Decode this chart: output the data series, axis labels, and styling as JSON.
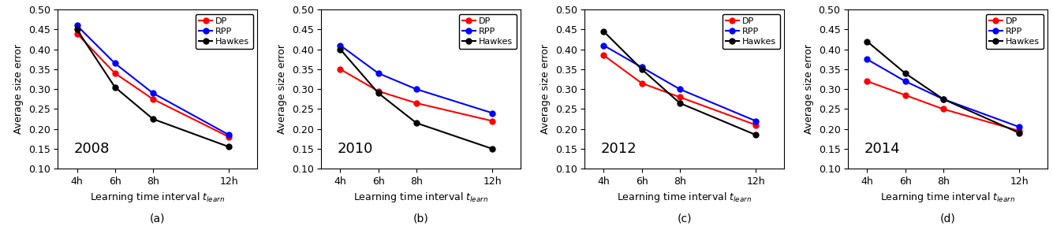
{
  "x_ticks": [
    4,
    6,
    8,
    12
  ],
  "x_labels": [
    "4h",
    "6h",
    "8h",
    "12h"
  ],
  "xlabel": "Learning time interval $t_{learn}$",
  "ylabel": "Average size error",
  "ylim": [
    0.1,
    0.5
  ],
  "yticks": [
    0.1,
    0.15,
    0.2,
    0.25,
    0.3,
    0.35,
    0.4,
    0.45,
    0.5
  ],
  "panels": [
    {
      "year": "2008",
      "label": "(a)",
      "DP": [
        0.44,
        0.34,
        0.275,
        0.18
      ],
      "RPP": [
        0.46,
        0.365,
        0.29,
        0.185
      ],
      "Hawkes": [
        0.45,
        0.305,
        0.225,
        0.155
      ]
    },
    {
      "year": "2010",
      "label": "(b)",
      "DP": [
        0.35,
        0.295,
        0.265,
        0.22
      ],
      "RPP": [
        0.41,
        0.34,
        0.3,
        0.24
      ],
      "Hawkes": [
        0.4,
        0.29,
        0.215,
        0.15
      ]
    },
    {
      "year": "2012",
      "label": "(c)",
      "DP": [
        0.385,
        0.315,
        0.28,
        0.21
      ],
      "RPP": [
        0.41,
        0.355,
        0.3,
        0.22
      ],
      "Hawkes": [
        0.445,
        0.35,
        0.265,
        0.185
      ]
    },
    {
      "year": "2014",
      "label": "(d)",
      "DP": [
        0.32,
        0.285,
        0.25,
        0.195
      ],
      "RPP": [
        0.375,
        0.32,
        0.275,
        0.205
      ],
      "Hawkes": [
        0.42,
        0.34,
        0.275,
        0.19
      ]
    }
  ],
  "colors": {
    "DP": "red",
    "RPP": "blue",
    "Hawkes": "black"
  },
  "marker": "o",
  "linewidth": 1.5,
  "markersize": 5,
  "tick_fontsize": 9,
  "label_fontsize": 9,
  "legend_fontsize": 8,
  "year_fontsize": 13,
  "sublabel_fontsize": 10
}
